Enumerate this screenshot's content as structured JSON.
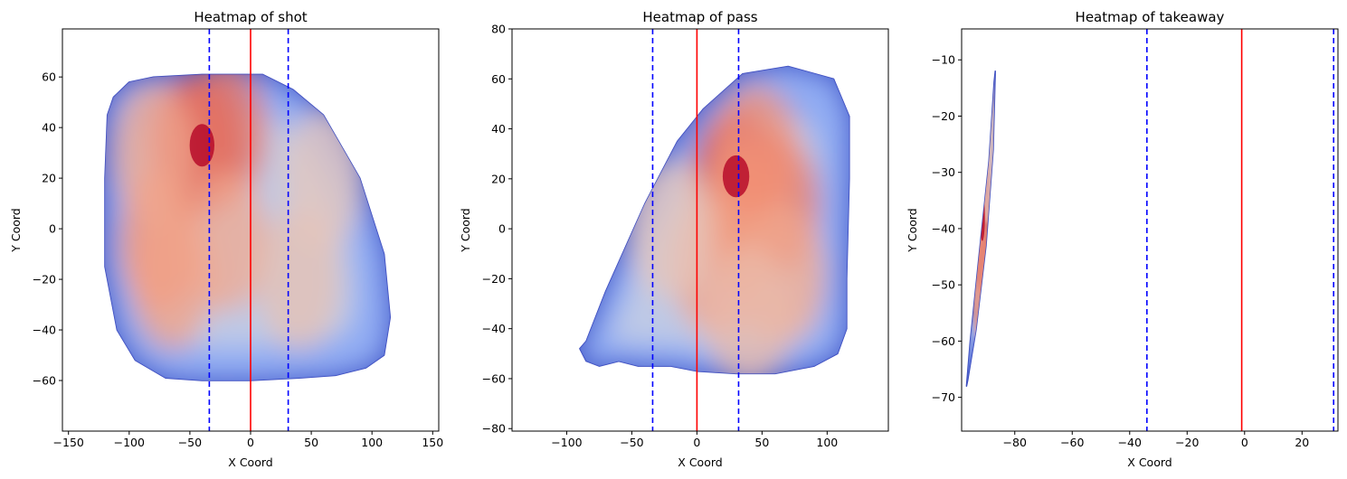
{
  "chart_data": [
    {
      "type": "heatmap",
      "title": "Heatmap of shot",
      "xlabel": "X Coord",
      "ylabel": "Y Coord",
      "xlim": [
        -155,
        155
      ],
      "ylim": [
        -80,
        79
      ],
      "xticks": [
        -150,
        -100,
        -50,
        0,
        50,
        100,
        150
      ],
      "yticks": [
        -60,
        -40,
        -20,
        0,
        20,
        40,
        60
      ],
      "grid": false,
      "colormap": "coolwarm",
      "density_region": {
        "outline_x": [
          -113,
          -100,
          -80,
          -40,
          -10,
          10,
          35,
          60,
          90,
          110,
          115,
          110,
          95,
          70,
          40,
          0,
          -40,
          -70,
          -95,
          -110,
          -120,
          -120,
          -118
        ],
        "outline_y": [
          52,
          58,
          60,
          61,
          61,
          61,
          55,
          45,
          20,
          -10,
          -35,
          -50,
          -55,
          -58,
          -59,
          -60,
          -60,
          -59,
          -52,
          -40,
          -15,
          20,
          45
        ]
      },
      "hotspots": [
        {
          "x": -40,
          "y": 33,
          "level": 1.0
        },
        {
          "x": -50,
          "y": 33,
          "level": 0.85
        },
        {
          "x": -20,
          "y": 38,
          "level": 0.8
        },
        {
          "x": -75,
          "y": -5,
          "level": 0.7
        },
        {
          "x": -65,
          "y": -20,
          "level": 0.6
        },
        {
          "x": -20,
          "y": -5,
          "level": 0.55
        },
        {
          "x": -80,
          "y": 30,
          "level": 0.55
        },
        {
          "x": 40,
          "y": -20,
          "level": 0.35
        },
        {
          "x": 60,
          "y": 20,
          "level": 0.3
        }
      ],
      "reference_lines": [
        {
          "x": 0,
          "style": "solid",
          "color": "#ff0000"
        },
        {
          "x": -34,
          "style": "dashed",
          "color": "#0000ff"
        },
        {
          "x": 31,
          "style": "dashed",
          "color": "#0000ff"
        }
      ]
    },
    {
      "type": "heatmap",
      "title": "Heatmap of pass",
      "xlabel": "X Coord",
      "ylabel": "Y Coord",
      "xlim": [
        -142,
        147
      ],
      "ylim": [
        -81,
        80
      ],
      "xticks": [
        -100,
        -50,
        0,
        50,
        100
      ],
      "yticks": [
        -80,
        -60,
        -40,
        -20,
        0,
        20,
        40,
        60,
        80
      ],
      "grid": false,
      "colormap": "coolwarm",
      "density_region": {
        "outline_x": [
          -85,
          -70,
          -40,
          -15,
          5,
          35,
          70,
          105,
          117,
          117,
          115,
          115,
          108,
          90,
          60,
          30,
          0,
          -20,
          -45,
          -60,
          -75,
          -85,
          -90
        ],
        "outline_y": [
          -45,
          -25,
          10,
          35,
          48,
          62,
          65,
          60,
          45,
          20,
          -20,
          -40,
          -50,
          -55,
          -58,
          -58,
          -57,
          -55,
          -55,
          -53,
          -55,
          -53,
          -48
        ]
      },
      "hotspots": [
        {
          "x": 30,
          "y": 21,
          "level": 1.0
        },
        {
          "x": 60,
          "y": 10,
          "level": 0.8
        },
        {
          "x": 35,
          "y": 5,
          "level": 0.7
        },
        {
          "x": 45,
          "y": 30,
          "level": 0.7
        },
        {
          "x": 15,
          "y": -15,
          "level": 0.6
        },
        {
          "x": 65,
          "y": -18,
          "level": 0.55
        },
        {
          "x": 40,
          "y": -35,
          "level": 0.4
        },
        {
          "x": -20,
          "y": 0,
          "level": 0.3
        }
      ],
      "reference_lines": [
        {
          "x": 0,
          "style": "solid",
          "color": "#ff0000"
        },
        {
          "x": -34,
          "style": "dashed",
          "color": "#0000ff"
        },
        {
          "x": 32,
          "style": "dashed",
          "color": "#0000ff"
        }
      ]
    },
    {
      "type": "heatmap",
      "title": "Heatmap of takeaway",
      "xlabel": "X Coord",
      "ylabel": "Y Coord",
      "xlim": [
        -98.5,
        32.5
      ],
      "ylim": [
        -76,
        -4.5
      ],
      "xticks": [
        -80,
        -60,
        -40,
        -20,
        0,
        20
      ],
      "yticks": [
        -70,
        -60,
        -50,
        -40,
        -30,
        -20,
        -10
      ],
      "grid": false,
      "colormap": "coolwarm",
      "density_region": {
        "outline_x": [
          -96.8,
          -96.4,
          -93.5,
          -90,
          -87.5,
          -86.8,
          -87.2,
          -89,
          -92.5,
          -95.5,
          -96.8
        ],
        "outline_y": [
          -68,
          -67,
          -58,
          -43,
          -26,
          -12,
          -14,
          -28,
          -45,
          -60,
          -68
        ]
      },
      "hotspots": [
        {
          "x": -91.3,
          "y": -38,
          "level": 1.0
        },
        {
          "x": -92,
          "y": -47,
          "level": 0.7
        },
        {
          "x": -89.5,
          "y": -25,
          "level": 0.35
        }
      ],
      "reference_lines": [
        {
          "x": -1,
          "style": "solid",
          "color": "#ff0000"
        },
        {
          "x": -34,
          "style": "dashed",
          "color": "#0000ff"
        },
        {
          "x": 31,
          "style": "dashed",
          "color": "#0000ff"
        }
      ]
    }
  ]
}
